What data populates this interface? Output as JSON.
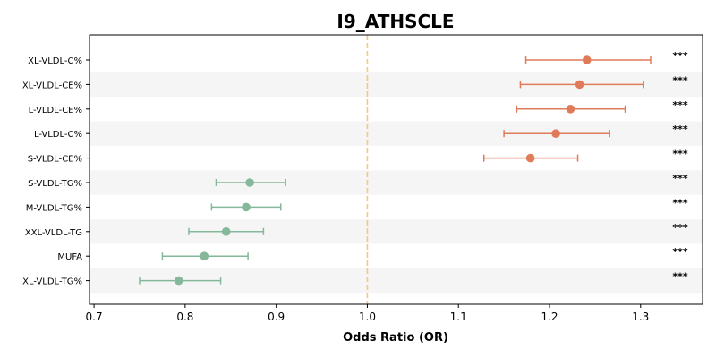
{
  "chart_data": {
    "type": "forest",
    "title": "I9_ATHSCLE",
    "xlabel": "Odds Ratio (OR)",
    "ylabel": "",
    "xlim": [
      0.695,
      1.368
    ],
    "xticks": [
      "0.7",
      "0.8",
      "0.9",
      "1.0",
      "1.1",
      "1.2",
      "1.3"
    ],
    "reference_line": 1.0,
    "alternating_row_shading": true,
    "colors": {
      "positive": "#e07b5a",
      "negative": "#85b89a",
      "reference": "#f5c97a",
      "stripe": "#f5f5f5"
    },
    "rows": [
      {
        "label": "XL-VLDL-C%",
        "or": 1.241,
        "lo": 1.174,
        "hi": 1.311,
        "sig": "***",
        "direction": "positive"
      },
      {
        "label": "XL-VLDL-CE%",
        "or": 1.233,
        "lo": 1.168,
        "hi": 1.303,
        "sig": "***",
        "direction": "positive"
      },
      {
        "label": "L-VLDL-CE%",
        "or": 1.223,
        "lo": 1.164,
        "hi": 1.283,
        "sig": "***",
        "direction": "positive"
      },
      {
        "label": "L-VLDL-C%",
        "or": 1.207,
        "lo": 1.15,
        "hi": 1.266,
        "sig": "***",
        "direction": "positive"
      },
      {
        "label": "S-VLDL-CE%",
        "or": 1.179,
        "lo": 1.128,
        "hi": 1.231,
        "sig": "***",
        "direction": "positive"
      },
      {
        "label": "S-VLDL-TG%",
        "or": 0.871,
        "lo": 0.834,
        "hi": 0.91,
        "sig": "***",
        "direction": "negative"
      },
      {
        "label": "M-VLDL-TG%",
        "or": 0.867,
        "lo": 0.829,
        "hi": 0.905,
        "sig": "***",
        "direction": "negative"
      },
      {
        "label": "XXL-VLDL-TG",
        "or": 0.845,
        "lo": 0.804,
        "hi": 0.886,
        "sig": "***",
        "direction": "negative"
      },
      {
        "label": "MUFA",
        "or": 0.821,
        "lo": 0.775,
        "hi": 0.869,
        "sig": "***",
        "direction": "negative"
      },
      {
        "label": "XL-VLDL-TG%",
        "or": 0.793,
        "lo": 0.75,
        "hi": 0.839,
        "sig": "***",
        "direction": "negative"
      }
    ]
  }
}
